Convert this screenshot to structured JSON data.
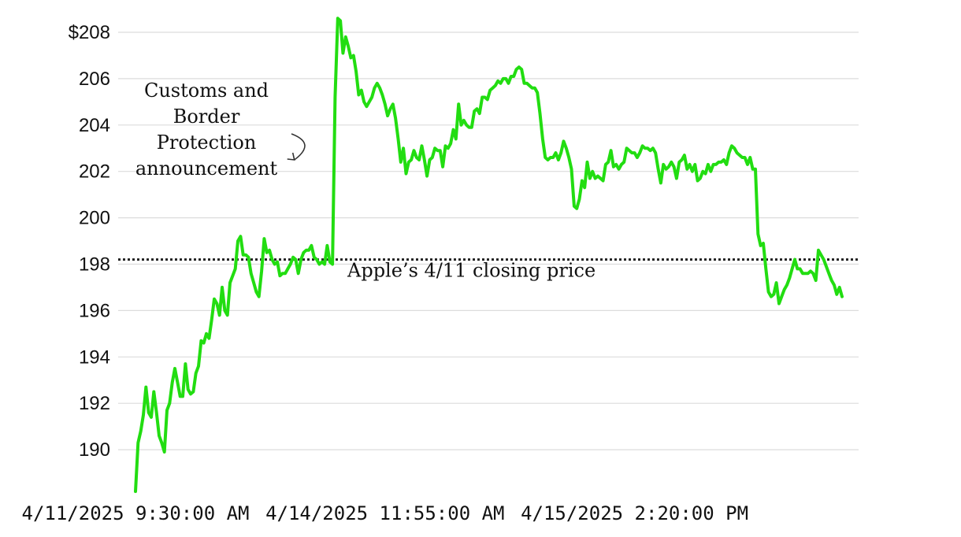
{
  "chart_data": {
    "type": "line",
    "title": "",
    "xlabel": "",
    "ylabel": "",
    "ylim": [
      188,
      208.9
    ],
    "y_ticks": [
      {
        "value": 208,
        "label": "$208"
      },
      {
        "value": 206,
        "label": "206"
      },
      {
        "value": 204,
        "label": "204"
      },
      {
        "value": 202,
        "label": "202"
      },
      {
        "value": 200,
        "label": "200"
      },
      {
        "value": 198,
        "label": "198"
      },
      {
        "value": 196,
        "label": "196"
      },
      {
        "value": 194,
        "label": "194"
      },
      {
        "value": 192,
        "label": "192"
      },
      {
        "value": 190,
        "label": "190"
      }
    ],
    "x_ticks": [
      {
        "index": 0,
        "label": "4/11/2025 9:30:00 AM"
      },
      {
        "index": 95,
        "label": "4/14/2025 11:55:00 AM"
      },
      {
        "index": 190,
        "label": "4/15/2025 2:20:00 PM"
      }
    ],
    "grid": true,
    "line_color": "#22dd11",
    "reference": {
      "value": 198.2,
      "label": "Apple’s 4/11 closing price",
      "style": "dotted"
    },
    "annotation": {
      "index": 65,
      "lines": [
        "Customs and",
        "Border",
        "Protection",
        "announcement"
      ]
    },
    "series": [
      {
        "values": [
          188.2,
          190.3,
          190.8,
          191.5,
          192.7,
          191.6,
          191.4,
          192.5,
          191.6,
          190.6,
          190.3,
          189.9,
          191.7,
          192.0,
          192.9,
          193.5,
          192.9,
          192.3,
          192.3,
          193.7,
          192.6,
          192.4,
          192.5,
          193.3,
          193.6,
          194.7,
          194.6,
          195.0,
          194.8,
          195.6,
          196.5,
          196.3,
          195.8,
          197.0,
          196.0,
          195.8,
          197.2,
          197.5,
          197.8,
          199.0,
          199.2,
          198.4,
          198.4,
          198.3,
          197.6,
          197.2,
          196.8,
          196.6,
          197.7,
          199.1,
          198.5,
          198.6,
          198.2,
          198.0,
          198.1,
          197.5,
          197.6,
          197.6,
          197.8,
          198.0,
          198.3,
          198.2,
          197.6,
          198.2,
          198.5,
          198.6,
          198.6,
          198.8,
          198.3,
          198.2,
          198.0,
          198.1,
          198.0,
          198.8,
          198.1,
          198.0,
          205.2,
          208.6,
          208.5,
          207.1,
          207.8,
          207.4,
          206.9,
          207.0,
          206.3,
          205.3,
          205.5,
          205.0,
          204.8,
          205.0,
          205.2,
          205.6,
          205.8,
          205.6,
          205.3,
          204.9,
          204.4,
          204.7,
          204.9,
          204.3,
          203.4,
          202.4,
          203.0,
          201.9,
          202.4,
          202.5,
          202.9,
          202.6,
          202.5,
          203.1,
          202.5,
          201.8,
          202.5,
          202.6,
          203.0,
          202.9,
          202.9,
          202.2,
          203.1,
          203.0,
          203.2,
          203.8,
          203.4,
          204.9,
          204.0,
          204.2,
          204.0,
          203.9,
          203.9,
          204.6,
          204.7,
          204.5,
          205.2,
          205.2,
          205.1,
          205.5,
          205.6,
          205.7,
          205.9,
          205.8,
          206.0,
          206.0,
          205.8,
          206.1,
          206.1,
          206.4,
          206.5,
          206.4,
          205.8,
          205.8,
          205.7,
          205.6,
          205.6,
          205.4,
          204.5,
          203.4,
          202.6,
          202.5,
          202.6,
          202.6,
          202.8,
          202.5,
          202.8,
          203.3,
          203.0,
          202.6,
          202.1,
          200.5,
          200.4,
          200.8,
          201.6,
          201.3,
          202.4,
          201.7,
          202.0,
          201.7,
          201.8,
          201.7,
          201.6,
          202.3,
          202.4,
          202.9,
          202.2,
          202.3,
          202.1,
          202.3,
          202.4,
          203.0,
          202.9,
          202.8,
          202.8,
          202.6,
          202.8,
          203.1,
          203.0,
          203.0,
          202.9,
          203.0,
          202.8,
          202.1,
          201.5,
          202.3,
          202.1,
          202.2,
          202.4,
          202.2,
          201.7,
          202.4,
          202.5,
          202.7,
          202.1,
          202.3,
          202.0,
          202.3,
          201.6,
          201.7,
          202.0,
          201.9,
          202.3,
          202.0,
          202.3,
          202.3,
          202.4,
          202.4,
          202.5,
          202.3,
          202.8,
          203.1,
          203.0,
          202.8,
          202.7,
          202.6,
          202.6,
          202.3,
          202.6,
          202.1,
          202.1,
          199.3,
          198.8,
          198.9,
          197.8,
          196.8,
          196.6,
          196.7,
          197.2,
          196.3,
          196.6,
          196.9,
          197.1,
          197.4,
          197.8,
          198.2,
          197.8,
          197.8,
          197.6,
          197.6,
          197.6,
          197.7,
          197.6,
          197.3,
          198.6,
          198.4,
          198.2,
          197.9,
          197.6,
          197.3,
          197.1,
          196.7,
          197.0,
          196.6
        ]
      }
    ]
  }
}
